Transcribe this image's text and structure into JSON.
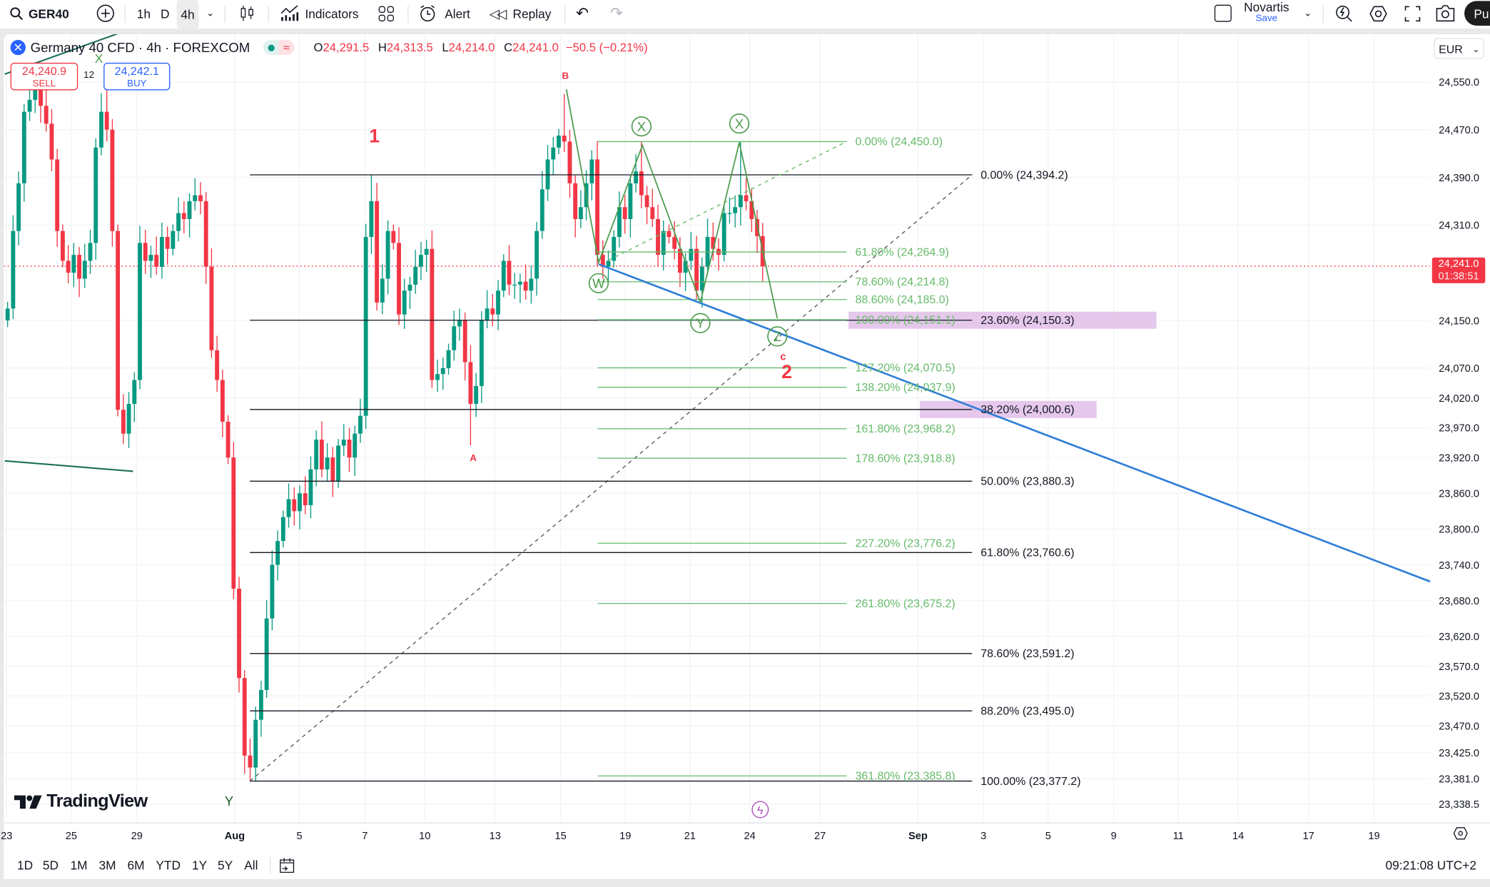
{
  "toolbar": {
    "symbol": "GER40",
    "intervals": [
      "1h",
      "D",
      "4h"
    ],
    "indicators": "Indicators",
    "alert": "Alert",
    "replay": "Replay",
    "layout_name": "Novartis",
    "save": "Save",
    "publish": "Pu"
  },
  "legend": {
    "title": "Germany 40 CFD · 4h · FOREXCOM",
    "o_label": "O",
    "o": "24,291.5",
    "h_label": "H",
    "h": "24,313.5",
    "l_label": "L",
    "l": "24,214.0",
    "c_label": "C",
    "c": "24,241.0",
    "change": "−50.5 (−0.21%)"
  },
  "trade": {
    "sell_price": "24,240.9",
    "sell": "SELL",
    "spread": "12",
    "buy_price": "24,242.1",
    "buy": "BUY"
  },
  "currency": "EUR",
  "price_tag": {
    "price": "24,241.0",
    "countdown": "01:38:51"
  },
  "logo": "TradingView",
  "bottom": {
    "ranges": [
      "1D",
      "5D",
      "1M",
      "3M",
      "6M",
      "YTD",
      "1Y",
      "5Y",
      "All"
    ],
    "clock": "09:21:08 UTC+2"
  },
  "colors": {
    "up": "#089981",
    "down": "#f23645",
    "fib_retracement": "#131722",
    "fib_extension": "#66bb6a",
    "trendline": "#2f7fd8",
    "highlight": "#e1bee7",
    "wave": "#4c9a4c",
    "label_red": "#f23645",
    "accent": "#2962ff"
  },
  "chart_data": {
    "type": "candlestick",
    "title": "Germany 40 CFD · 4h · FOREXCOM",
    "price_ticks": [
      "24,550.0",
      "24,470.0",
      "24,390.0",
      "24,310.0",
      "24,150.0",
      "24,070.0",
      "24,020.0",
      "23,970.0",
      "23,920.0",
      "23,860.0",
      "23,800.0",
      "23,740.0",
      "23,680.0",
      "23,620.0",
      "23,570.0",
      "23,520.0",
      "23,470.0",
      "23,425.0",
      "23,381.0",
      "23,338.5"
    ],
    "time_ticks": [
      "23",
      "25",
      "29",
      "Aug",
      "5",
      "7",
      "10",
      "13",
      "15",
      "19",
      "21",
      "24",
      "27",
      "Sep",
      "3",
      "5",
      "9",
      "11",
      "14",
      "17",
      "19"
    ],
    "candles": {
      "first_open": 24150,
      "default_wick": 22,
      "closes": [
        24170,
        24300,
        24380,
        24500,
        24520,
        24540,
        24510,
        24480,
        24420,
        24300,
        24250,
        24230,
        24260,
        24220,
        24250,
        24280,
        24440,
        24500,
        24470,
        24300,
        24000,
        23960,
        24010,
        24050,
        24280,
        24250,
        24260,
        24240,
        24290,
        24270,
        24300,
        24330,
        24320,
        24350,
        24360,
        24350,
        24240,
        24100,
        24050,
        23980,
        23920,
        23700,
        23550,
        23420,
        23400,
        23480,
        23530,
        23650,
        23740,
        23780,
        23820,
        23850,
        23830,
        23860,
        23840,
        23900,
        23950,
        23900,
        23920,
        23880,
        23940,
        23950,
        23920,
        23960,
        23990,
        24290,
        24350,
        24180,
        24220,
        24300,
        24280,
        24160,
        24200,
        24210,
        24240,
        24260,
        24270,
        24050,
        24060,
        24070,
        24100,
        24140,
        24150,
        24080,
        24010,
        24040,
        24150,
        24170,
        24160,
        24200,
        24250,
        24210,
        24210,
        24215,
        24200,
        24220,
        24300,
        24370,
        24420,
        24440,
        24460,
        24450,
        24380,
        24320,
        24340,
        24380,
        24420,
        24260,
        24240,
        24250,
        24290,
        24340,
        24320,
        24380,
        24400,
        24360,
        24340,
        24320,
        24260,
        24300,
        24290,
        24270,
        24230,
        24250,
        24270,
        24200,
        24240,
        24290,
        24270,
        24260,
        24330,
        24330,
        24340,
        24360,
        24350,
        24320,
        24291.5,
        24241.0
      ],
      "overrides": {
        "5": [
          24555,
          null
        ],
        "18": [
          24545,
          null
        ],
        "44": [
          null,
          23377.2
        ],
        "66": [
          24394.2,
          null
        ],
        "84": [
          null,
          23940
        ],
        "101": [
          24530,
          null
        ],
        "107": [
          null,
          24240
        ],
        "115": [
          24450,
          null
        ],
        "125": [
          null,
          24185
        ],
        "133": [
          24450,
          null
        ],
        "137": [
          24313.5,
          24214.0
        ]
      }
    },
    "fib_retracement": [
      {
        "label": "0.00% (24,394.2)",
        "price": 24394.2
      },
      {
        "label": "23.60% (24,150.3)",
        "price": 24150.3,
        "highlight": true
      },
      {
        "label": "38.20% (24,000.6)",
        "price": 24000.6,
        "highlight": true
      },
      {
        "label": "50.00% (23,880.3)",
        "price": 23880.3
      },
      {
        "label": "61.80% (23,760.6)",
        "price": 23760.6
      },
      {
        "label": "78.60% (23,591.2)",
        "price": 23591.2
      },
      {
        "label": "88.20% (23,495.0)",
        "price": 23495.0
      },
      {
        "label": "100.00% (23,377.2)",
        "price": 23377.2
      }
    ],
    "fib_extension": [
      {
        "label": "0.00% (24,450.0)",
        "price": 24450.0
      },
      {
        "label": "61.80% (24,264.9)",
        "price": 24264.9
      },
      {
        "label": "78.60% (24,214.8)",
        "price": 24214.8
      },
      {
        "label": "88.60% (24,185.0)",
        "price": 24185.0
      },
      {
        "label": "100.00% (24,151.1)",
        "price": 24151.1
      },
      {
        "label": "127.20% (24,070.5)",
        "price": 24070.5
      },
      {
        "label": "138.20% (24,037.9)",
        "price": 24037.9
      },
      {
        "label": "161.80% (23,968.2)",
        "price": 23968.2
      },
      {
        "label": "178.60% (23,918.8)",
        "price": 23918.8
      },
      {
        "label": "227.20% (23,776.2)",
        "price": 23776.2
      },
      {
        "label": "261.80% (23,675.2)",
        "price": 23675.2
      },
      {
        "label": "361.80% (23,385.8)",
        "price": 23385.8
      }
    ],
    "wave_circles": [
      "W",
      "X",
      "Y",
      "X",
      "Z"
    ],
    "wave_labels": [
      "1",
      "B",
      "A",
      "c",
      "2",
      "X",
      "Y"
    ],
    "current_price": 24241.0
  }
}
